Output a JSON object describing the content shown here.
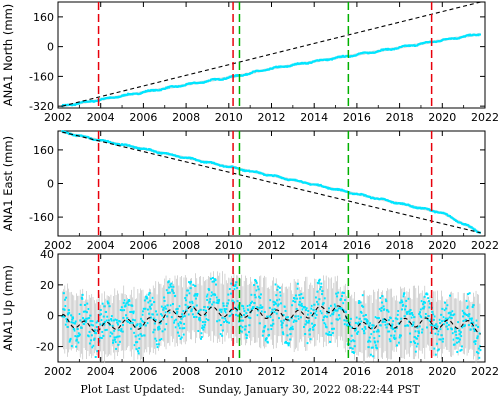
{
  "colors": {
    "data": "#00e5ff",
    "fit": "#000000",
    "error_bars": "#b8b8b8",
    "red_lines": "#e8000b",
    "green_lines": "#00b000"
  },
  "chart_data": [
    {
      "type": "scatter",
      "ylabel": "ANA1 North (mm)",
      "xlim": [
        2002,
        2022
      ],
      "ylim": [
        -330,
        240
      ],
      "xticks": [
        2002,
        2004,
        2006,
        2008,
        2010,
        2012,
        2014,
        2016,
        2018,
        2020,
        2022
      ],
      "yticks": [
        -320,
        -160,
        0,
        160
      ],
      "red_vlines": [
        2003.9,
        2010.2,
        2019.5
      ],
      "green_vlines": [
        2010.5,
        2015.6
      ],
      "series": [
        {
          "x": [
            2002.2,
            2004,
            2006,
            2008,
            2010.3,
            2012,
            2014,
            2016,
            2018,
            2020,
            2021.8
          ],
          "values": [
            -320,
            -285,
            -245,
            -205,
            -160,
            -118,
            -80,
            -43,
            -5,
            35,
            68
          ]
        }
      ],
      "fit_line": {
        "x": [
          2002.2,
          2021.8
        ],
        "values": [
          -320,
          240
        ]
      }
    },
    {
      "type": "scatter",
      "ylabel": "ANA1 East (mm)",
      "xlim": [
        2002,
        2022
      ],
      "ylim": [
        -250,
        250
      ],
      "xticks": [
        2002,
        2004,
        2006,
        2008,
        2010,
        2012,
        2014,
        2016,
        2018,
        2020,
        2022
      ],
      "yticks": [
        -160,
        0,
        160
      ],
      "red_vlines": [
        2003.9,
        2010.2,
        2019.5
      ],
      "green_vlines": [
        2010.5,
        2015.6
      ],
      "series": [
        {
          "x": [
            2002.2,
            2004,
            2006,
            2008,
            2010,
            2012,
            2014,
            2016,
            2018,
            2020,
            2021.8
          ],
          "values": [
            245,
            205,
            165,
            122,
            80,
            38,
            -5,
            -50,
            -95,
            -140,
            -235
          ]
        }
      ],
      "fit_line": {
        "x": [
          2002.2,
          2021.8
        ],
        "values": [
          245,
          -235
        ]
      }
    },
    {
      "type": "scatter",
      "ylabel": "ANA1 Up (mm)",
      "xlim": [
        2002,
        2022
      ],
      "ylim": [
        -30,
        40
      ],
      "xticks": [
        2002,
        2004,
        2006,
        2008,
        2010,
        2012,
        2014,
        2016,
        2018,
        2020,
        2022
      ],
      "yticks": [
        -20,
        0,
        20,
        40
      ],
      "red_vlines": [
        2003.9,
        2010.2,
        2019.5
      ],
      "green_vlines": [
        2010.5,
        2015.6
      ],
      "series": [
        {
          "x": [
            2002.2,
            2003,
            2004,
            2005,
            2006,
            2007,
            2008,
            2009,
            2010,
            2011,
            2012,
            2013,
            2014,
            2015,
            2016,
            2017,
            2018,
            2019,
            2020,
            2021,
            2021.8
          ],
          "values": [
            -2,
            -5,
            -8,
            -4,
            -6,
            2,
            4,
            6,
            5,
            3,
            2,
            0,
            2,
            4,
            -8,
            -6,
            -5,
            -4,
            -6,
            -5,
            -8
          ],
          "scatter_range": [
            -22,
            38
          ]
        }
      ],
      "fit_line": {
        "x": [
          2002.2,
          2003,
          2004,
          2005,
          2006,
          2007,
          2008,
          2009,
          2010,
          2011,
          2012,
          2013,
          2014,
          2015,
          2016,
          2017,
          2018,
          2019,
          2020,
          2021,
          2021.8
        ],
        "values": [
          -2,
          -6,
          -8,
          -5,
          -6,
          0,
          3,
          3,
          2,
          2,
          1,
          0,
          2,
          6,
          -8,
          -5,
          -5,
          -4,
          -6,
          -5,
          -9
        ]
      }
    }
  ],
  "footer": {
    "label": "Plot Last Updated:",
    "timestamp": "Sunday, January 30, 2022 08:22:44 PST"
  }
}
